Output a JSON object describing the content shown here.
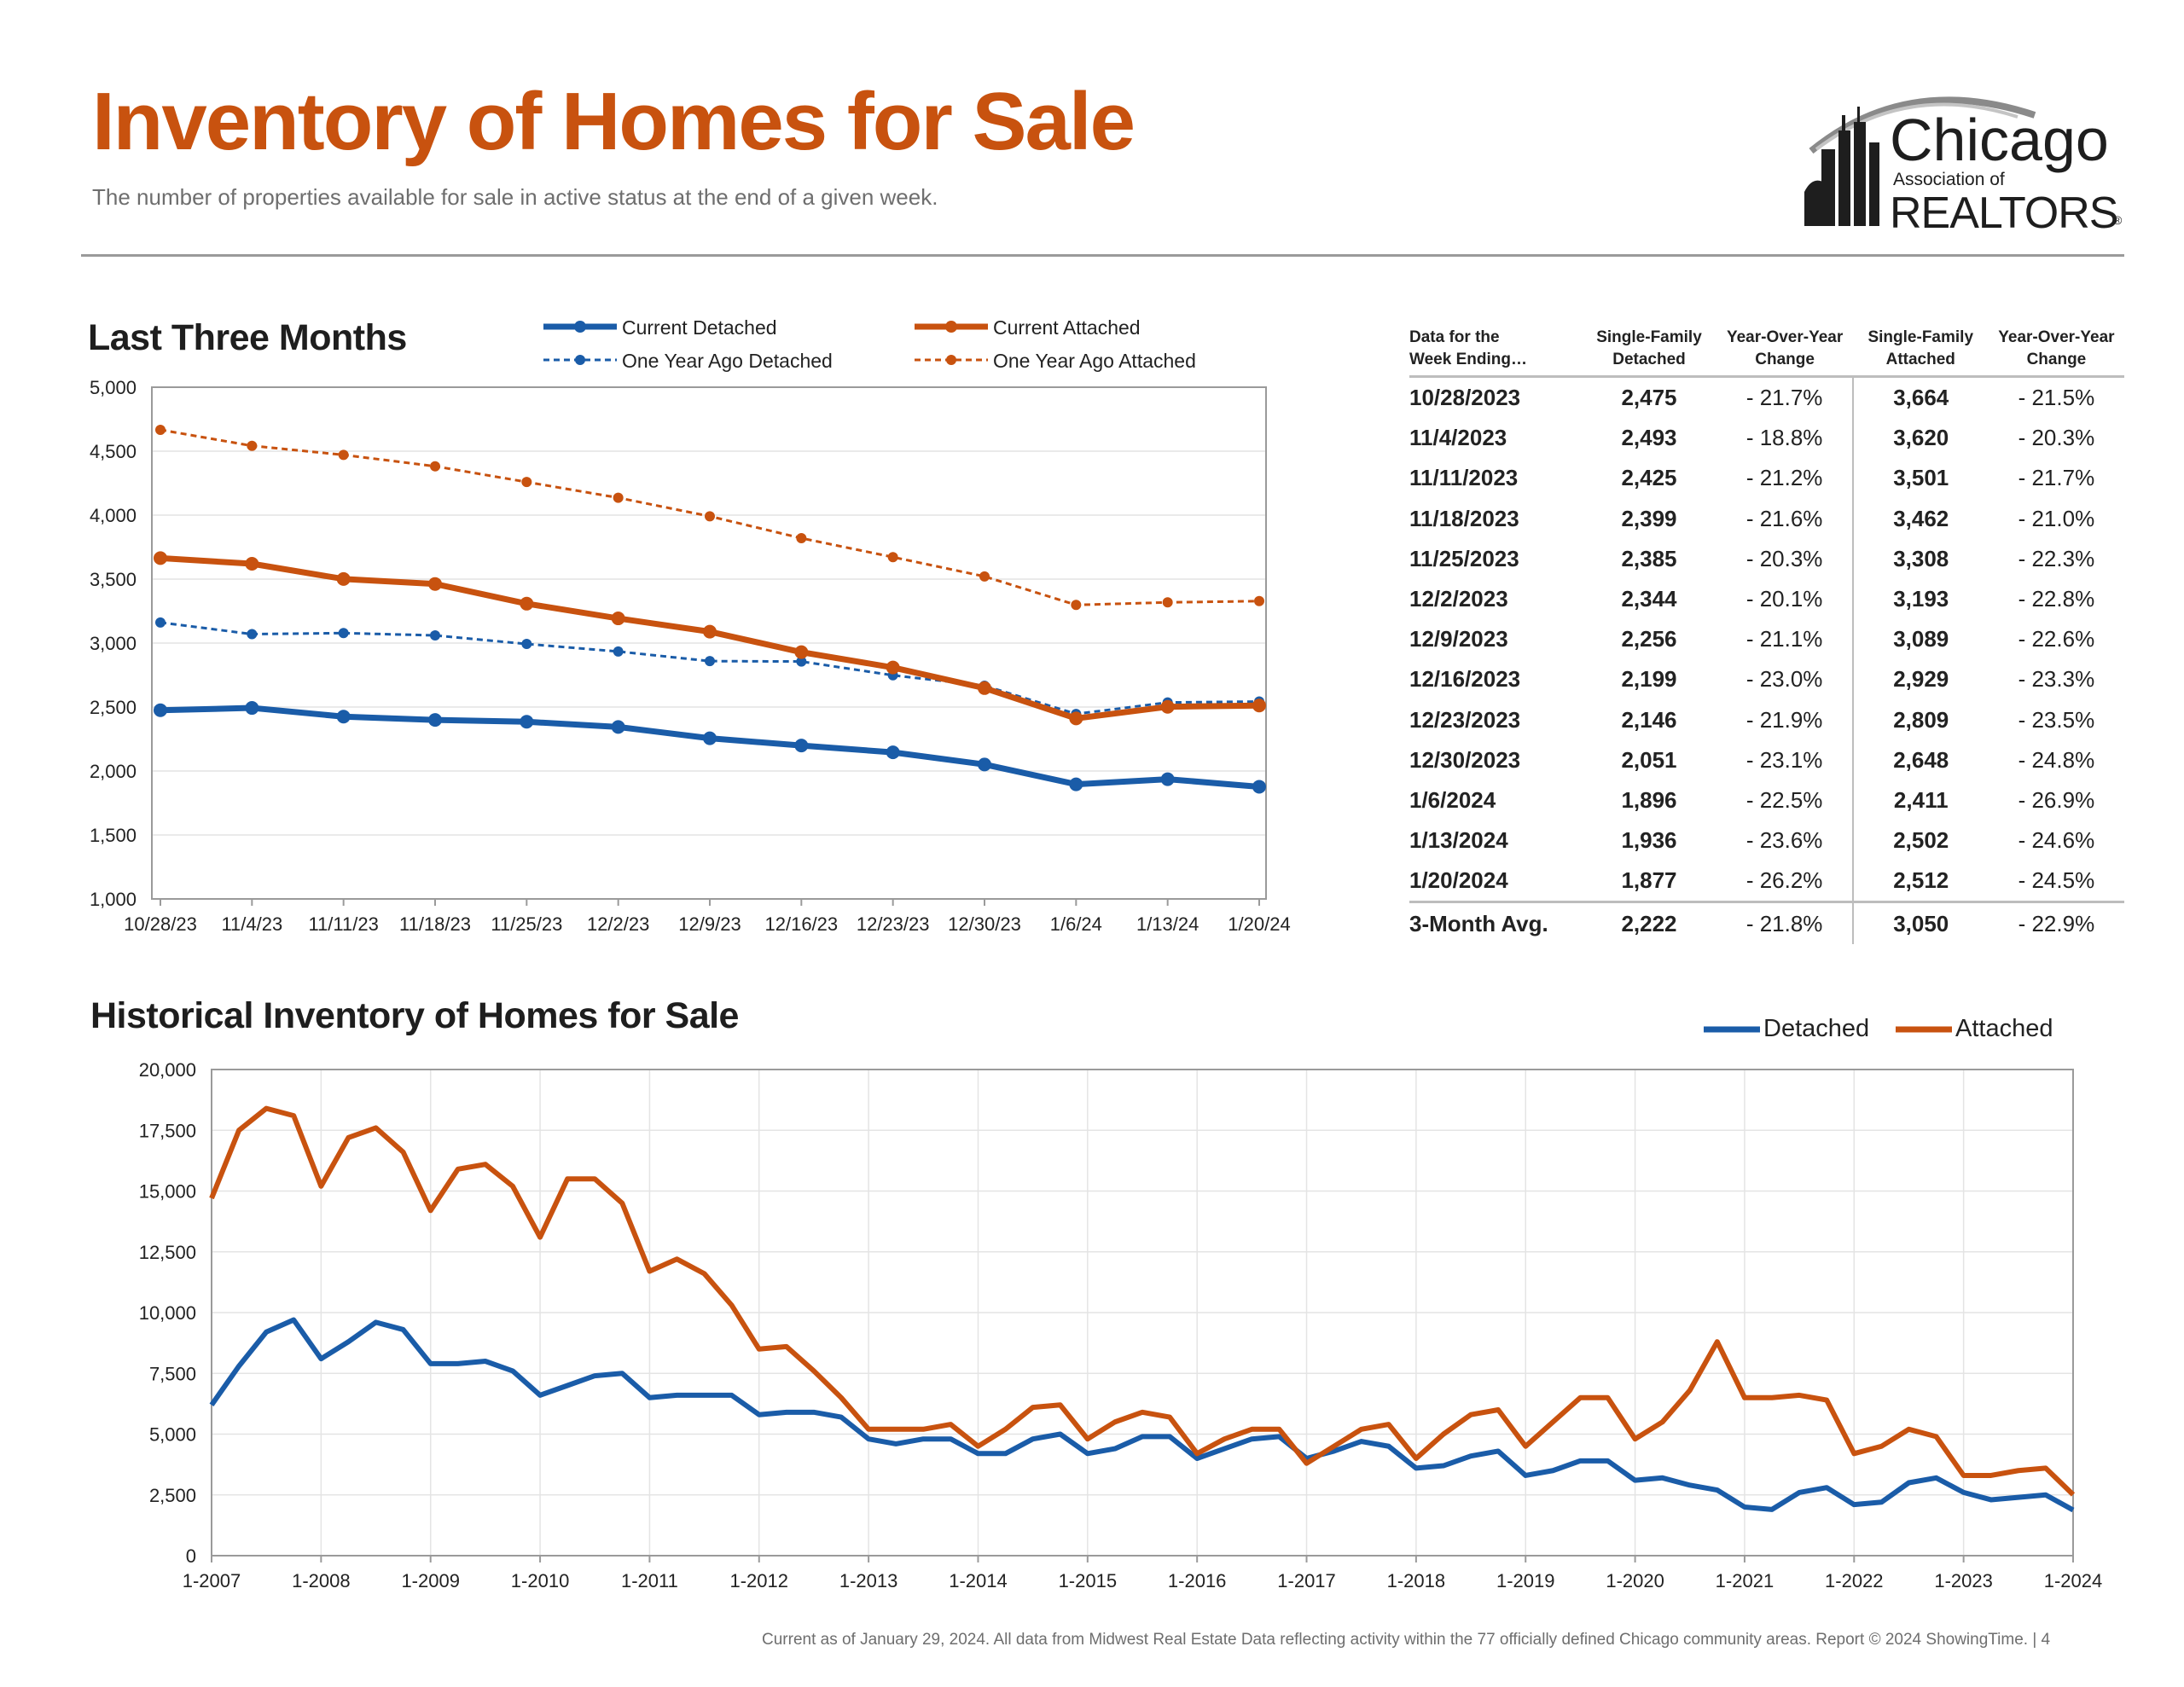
{
  "header": {
    "title": "Inventory of Homes for Sale",
    "subtitle": "The number of properties available for sale in active status at the end of a given week."
  },
  "logo": {
    "line1": "Chicago",
    "line2": "Association of",
    "line3": "REALTORS",
    "mark": "®"
  },
  "colors": {
    "detached": "#1a5ca8",
    "attached": "#c8520f",
    "brand": "#c8520f",
    "grid": "#e4e4e4",
    "axis": "#9a9a9a"
  },
  "section1": {
    "heading": "Last Three Months",
    "legend": {
      "current_detached": "Current Detached",
      "current_attached": "Current Attached",
      "ago_detached": "One Year Ago Detached",
      "ago_attached": "One Year Ago Attached"
    }
  },
  "table": {
    "headers": [
      "Data for the\nWeek Ending…",
      "Single-Family\nDetached",
      "Year-Over-Year\nChange",
      "Single-Family\nAttached",
      "Year-Over-Year\nChange"
    ],
    "rows": [
      [
        "10/28/2023",
        "2,475",
        "- 21.7%",
        "3,664",
        "- 21.5%"
      ],
      [
        "11/4/2023",
        "2,493",
        "- 18.8%",
        "3,620",
        "- 20.3%"
      ],
      [
        "11/11/2023",
        "2,425",
        "- 21.2%",
        "3,501",
        "- 21.7%"
      ],
      [
        "11/18/2023",
        "2,399",
        "- 21.6%",
        "3,462",
        "- 21.0%"
      ],
      [
        "11/25/2023",
        "2,385",
        "- 20.3%",
        "3,308",
        "- 22.3%"
      ],
      [
        "12/2/2023",
        "2,344",
        "- 20.1%",
        "3,193",
        "- 22.8%"
      ],
      [
        "12/9/2023",
        "2,256",
        "- 21.1%",
        "3,089",
        "- 22.6%"
      ],
      [
        "12/16/2023",
        "2,199",
        "- 23.0%",
        "2,929",
        "- 23.3%"
      ],
      [
        "12/23/2023",
        "2,146",
        "- 21.9%",
        "2,809",
        "- 23.5%"
      ],
      [
        "12/30/2023",
        "2,051",
        "- 23.1%",
        "2,648",
        "- 24.8%"
      ],
      [
        "1/6/2024",
        "1,896",
        "- 22.5%",
        "2,411",
        "- 26.9%"
      ],
      [
        "1/13/2024",
        "1,936",
        "- 23.6%",
        "2,502",
        "- 24.6%"
      ],
      [
        "1/20/2024",
        "1,877",
        "- 26.2%",
        "2,512",
        "- 24.5%"
      ]
    ],
    "avg": [
      "3-Month Avg.",
      "2,222",
      "- 21.8%",
      "3,050",
      "- 22.9%"
    ]
  },
  "section2": {
    "heading": "Historical Inventory of Homes for Sale",
    "legend": {
      "detached": "Detached",
      "attached": "Attached"
    }
  },
  "footer": "Current as of January 29, 2024. All data from Midwest Real Estate Data reflecting activity within the 77 officially defined Chicago community areas. Report © 2024 ShowingTime.  |  4",
  "chart_data": [
    {
      "type": "line",
      "title": "Last Three Months",
      "categories": [
        "10/28/23",
        "11/4/23",
        "11/11/23",
        "11/18/23",
        "11/25/23",
        "12/2/23",
        "12/9/23",
        "12/16/23",
        "12/23/23",
        "12/30/23",
        "1/6/24",
        "1/13/24",
        "1/20/24"
      ],
      "ylim": [
        1000,
        5000
      ],
      "yticks": [
        1000,
        1500,
        2000,
        2500,
        3000,
        3500,
        4000,
        4500,
        5000
      ],
      "grid": true,
      "legend": "top",
      "series": [
        {
          "name": "Current Detached",
          "style": "solid",
          "values": [
            2475,
            2493,
            2425,
            2399,
            2385,
            2344,
            2256,
            2199,
            2146,
            2051,
            1896,
            1936,
            1877
          ]
        },
        {
          "name": "Current Attached",
          "style": "solid",
          "values": [
            3664,
            3620,
            3501,
            3462,
            3308,
            3193,
            3089,
            2929,
            2809,
            2648,
            2411,
            2502,
            2512
          ]
        },
        {
          "name": "One Year Ago Detached",
          "style": "dashed",
          "values": [
            3161,
            3070,
            3078,
            3060,
            2993,
            2934,
            2859,
            2856,
            2748,
            2667,
            2446,
            2536,
            2543
          ]
        },
        {
          "name": "One Year Ago Attached",
          "style": "dashed",
          "values": [
            4667,
            4542,
            4471,
            4382,
            4259,
            4136,
            3991,
            3820,
            3672,
            3521,
            3298,
            3318,
            3328
          ]
        }
      ]
    },
    {
      "type": "line",
      "title": "Historical Inventory of Homes for Sale",
      "x": [
        2007.0,
        2007.25,
        2007.5,
        2007.75,
        2008.0,
        2008.25,
        2008.5,
        2008.75,
        2009.0,
        2009.25,
        2009.5,
        2009.75,
        2010.0,
        2010.25,
        2010.5,
        2010.75,
        2011.0,
        2011.25,
        2011.5,
        2011.75,
        2012.0,
        2012.25,
        2012.5,
        2012.75,
        2013.0,
        2013.25,
        2013.5,
        2013.75,
        2014.0,
        2014.25,
        2014.5,
        2014.75,
        2015.0,
        2015.25,
        2015.5,
        2015.75,
        2016.0,
        2016.25,
        2016.5,
        2016.75,
        2017.0,
        2017.25,
        2017.5,
        2017.75,
        2018.0,
        2018.25,
        2018.5,
        2018.75,
        2019.0,
        2019.25,
        2019.5,
        2019.75,
        2020.0,
        2020.25,
        2020.5,
        2020.75,
        2021.0,
        2021.25,
        2021.5,
        2021.75,
        2022.0,
        2022.25,
        2022.5,
        2022.75,
        2023.0,
        2023.25,
        2023.5,
        2023.75,
        2024.0
      ],
      "xticks": [
        "1-2007",
        "1-2008",
        "1-2009",
        "1-2010",
        "1-2011",
        "1-2012",
        "1-2013",
        "1-2014",
        "1-2015",
        "1-2016",
        "1-2017",
        "1-2018",
        "1-2019",
        "1-2020",
        "1-2021",
        "1-2022",
        "1-2023",
        "1-2024"
      ],
      "ylim": [
        0,
        20000
      ],
      "yticks": [
        0,
        2500,
        5000,
        7500,
        10000,
        12500,
        15000,
        17500,
        20000
      ],
      "grid": true,
      "legend": "top-right",
      "series": [
        {
          "name": "Detached",
          "values": [
            6200,
            7800,
            9200,
            9700,
            8100,
            8800,
            9600,
            9300,
            7900,
            7900,
            8000,
            7600,
            6600,
            7000,
            7400,
            7500,
            6500,
            6600,
            6600,
            6600,
            5800,
            5900,
            5900,
            5700,
            4800,
            4600,
            4800,
            4800,
            4200,
            4200,
            4800,
            5000,
            4200,
            4400,
            4900,
            4900,
            4000,
            4400,
            4800,
            4900,
            4000,
            4300,
            4700,
            4500,
            3600,
            3700,
            4100,
            4300,
            3300,
            3500,
            3900,
            3900,
            3100,
            3200,
            2900,
            2700,
            2000,
            1900,
            2600,
            2800,
            2100,
            2200,
            3000,
            3200,
            2600,
            2300,
            2400,
            2500,
            1877
          ]
        },
        {
          "name": "Attached",
          "values": [
            14700,
            17500,
            18400,
            18100,
            15200,
            17200,
            17600,
            16600,
            14200,
            15900,
            16100,
            15200,
            13100,
            15500,
            15500,
            14500,
            11700,
            12200,
            11600,
            10300,
            8500,
            8600,
            7600,
            6500,
            5200,
            5200,
            5200,
            5400,
            4500,
            5200,
            6100,
            6200,
            4800,
            5500,
            5900,
            5700,
            4200,
            4800,
            5200,
            5200,
            3800,
            4500,
            5200,
            5400,
            4000,
            5000,
            5800,
            6000,
            4500,
            5500,
            6500,
            6500,
            4800,
            5500,
            6800,
            8800,
            6500,
            6500,
            6600,
            6400,
            4200,
            4500,
            5200,
            4900,
            3300,
            3300,
            3500,
            3600,
            2512
          ]
        }
      ]
    }
  ]
}
